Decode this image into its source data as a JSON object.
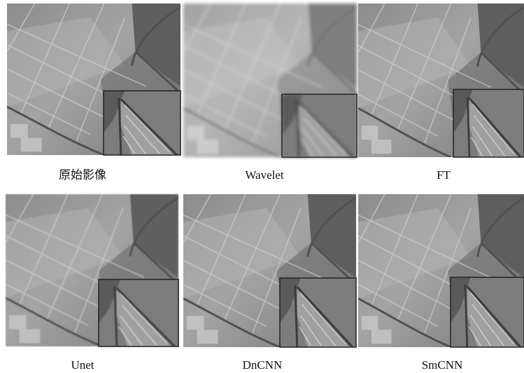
{
  "captions": [
    "原始影像",
    "Wavelet",
    "FT",
    "Unet",
    "DnCNN",
    "SmCNN"
  ]
}
